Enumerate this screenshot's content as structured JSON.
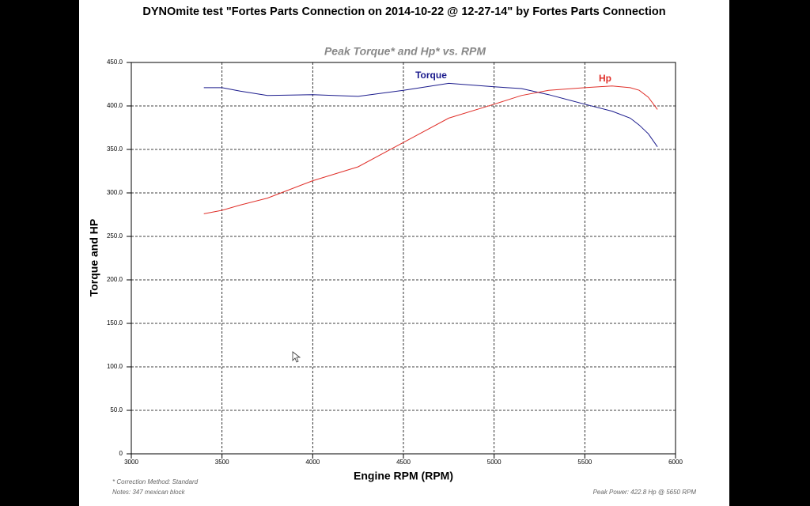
{
  "chart_data": {
    "type": "line",
    "title": "DYNOmite test \"Fortes Parts Connection on 2014-10-22 @ 12-27-14\" by Fortes Parts Connection",
    "subtitle": "Peak Torque* and Hp* vs. RPM",
    "x_label": "Engine RPM (RPM)",
    "y_label": "Torque and HP",
    "x": [
      3400,
      3500,
      3600,
      3750,
      4000,
      4250,
      4500,
      4750,
      5000,
      5150,
      5300,
      5500,
      5650,
      5750,
      5800,
      5850,
      5900
    ],
    "series": [
      {
        "name": "Torque",
        "color": "#1a1a8c",
        "values": [
          421,
          421,
          417,
          412,
          413,
          411,
          418,
          426,
          422,
          420,
          413,
          402,
          394,
          386,
          378,
          368,
          353
        ]
      },
      {
        "name": "Hp",
        "color": "#e0302a",
        "values": [
          276,
          280,
          286,
          294,
          314,
          330,
          358,
          386,
          402,
          412,
          418,
          421,
          423,
          421,
          418,
          410,
          396
        ]
      }
    ],
    "xlim": [
      3000,
      6000
    ],
    "xticks": [
      3000,
      3500,
      4000,
      4500,
      5000,
      5500,
      6000
    ],
    "ylim": [
      0,
      450
    ],
    "yticks": [
      0,
      {
        "value": 50,
        "label": "50.0"
      },
      {
        "value": 100,
        "label": "100.0"
      },
      {
        "value": 150,
        "label": "150.0"
      },
      {
        "value": 200,
        "label": "200.0"
      },
      {
        "value": 250,
        "label": "250.0"
      },
      {
        "value": 300,
        "label": "300.0"
      },
      {
        "value": 350,
        "label": "350.0"
      },
      {
        "value": 400,
        "label": "400.0"
      },
      {
        "value": 450,
        "label": "450.0"
      }
    ],
    "grid": true,
    "notes": [
      "* Correction Method: Standard",
      "Notes: 347 mexican block"
    ],
    "peak_note": "Peak Power: 422.8 Hp @ 5650 RPM"
  }
}
